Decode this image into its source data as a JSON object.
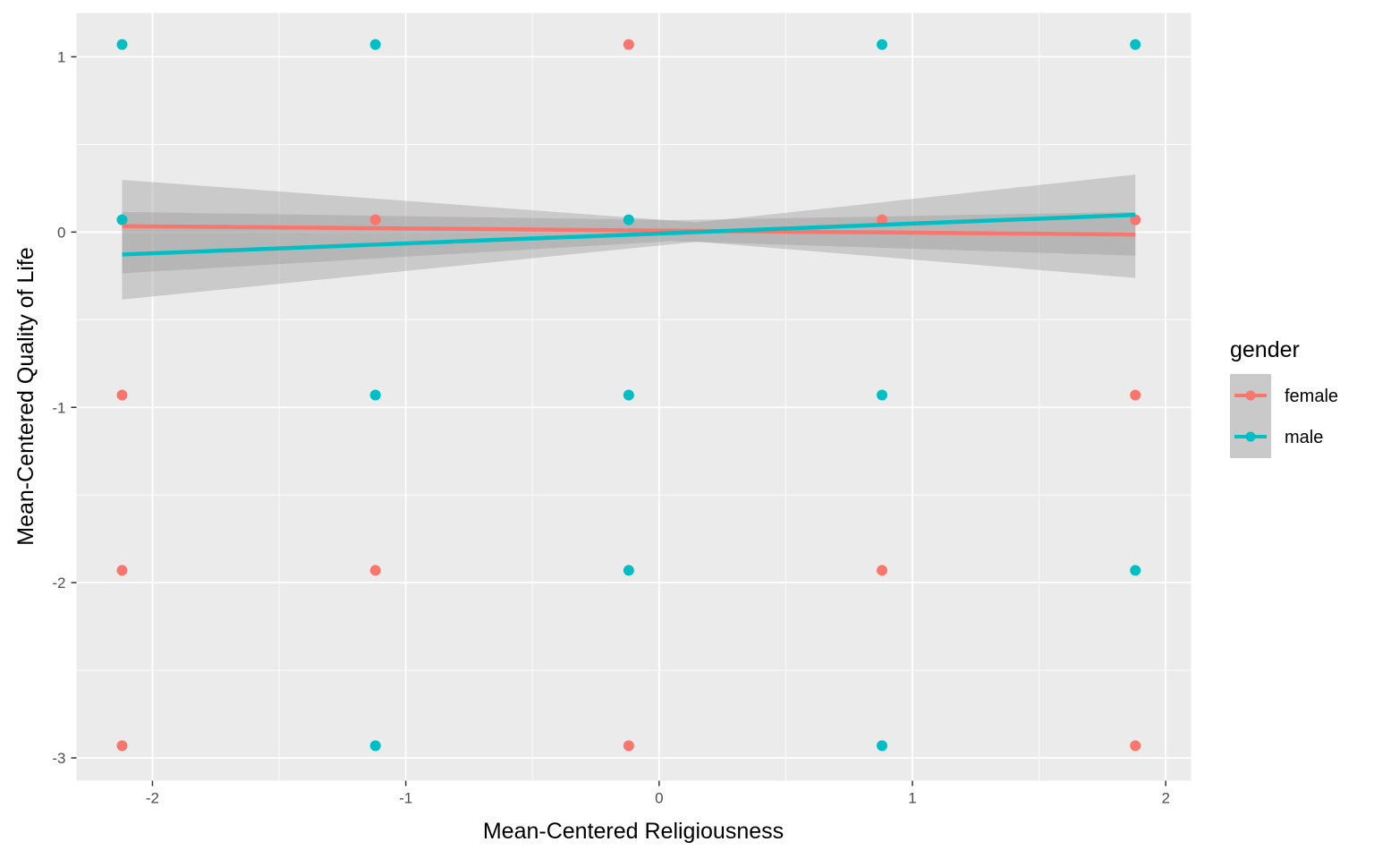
{
  "chart_data": {
    "type": "scatter",
    "xlabel": "Mean-Centered Religiousness",
    "ylabel": "Mean-Centered Quality of Life",
    "xlim": [
      -2.3,
      2.1
    ],
    "ylim": [
      -3.13,
      1.25
    ],
    "x_ticks": [
      -2,
      -1,
      0,
      1,
      2
    ],
    "y_ticks": [
      1,
      0,
      -1,
      -2,
      -3
    ],
    "x_tick_labels": [
      "-2",
      "-1",
      "0",
      "1",
      "2"
    ],
    "y_tick_labels": [
      "1",
      "0",
      "-1",
      "-2",
      "-3"
    ],
    "grid": true,
    "legend": {
      "title": "gender",
      "position": "right",
      "entries": [
        "female",
        "male"
      ]
    },
    "colors": {
      "female": "#F8766D",
      "male": "#00BFC4",
      "panel": "#EBEBEB",
      "ribbon": "#999999"
    },
    "series": [
      {
        "name": "female",
        "points": [
          [
            -2.12,
            -0.93
          ],
          [
            -2.12,
            -1.93
          ],
          [
            -2.12,
            -2.93
          ],
          [
            -1.12,
            0.07
          ],
          [
            -1.12,
            -1.93
          ],
          [
            -0.12,
            1.07
          ],
          [
            -0.12,
            -2.93
          ],
          [
            0.88,
            0.07
          ],
          [
            0.88,
            -1.93
          ],
          [
            1.88,
            0.07
          ],
          [
            1.88,
            -0.93
          ],
          [
            1.88,
            -2.93
          ]
        ],
        "fit": {
          "x": [
            -2.12,
            1.88
          ],
          "y": [
            0.034,
            -0.014
          ]
        },
        "band": {
          "lower": [
            -0.235,
            -0.135
          ],
          "upper": [
            0.115,
            0.115
          ],
          "center_x": 0.05,
          "center_half_width": 0.06
        }
      },
      {
        "name": "male",
        "points": [
          [
            -2.12,
            1.07
          ],
          [
            -2.12,
            0.07
          ],
          [
            -1.12,
            1.07
          ],
          [
            -1.12,
            -0.93
          ],
          [
            -1.12,
            -2.93
          ],
          [
            -0.12,
            0.07
          ],
          [
            -0.12,
            -0.93
          ],
          [
            -0.12,
            -1.93
          ],
          [
            0.88,
            1.07
          ],
          [
            0.88,
            -0.93
          ],
          [
            0.88,
            -2.93
          ],
          [
            1.88,
            1.07
          ],
          [
            1.88,
            -1.93
          ]
        ],
        "fit": {
          "x": [
            -2.12,
            1.88
          ],
          "y": [
            -0.128,
            0.098
          ]
        },
        "band": {
          "lower": [
            -0.385,
            -0.262
          ],
          "upper": [
            0.298,
            0.328
          ],
          "center_x": 0.15,
          "center_half_width": 0.055
        }
      }
    ]
  }
}
